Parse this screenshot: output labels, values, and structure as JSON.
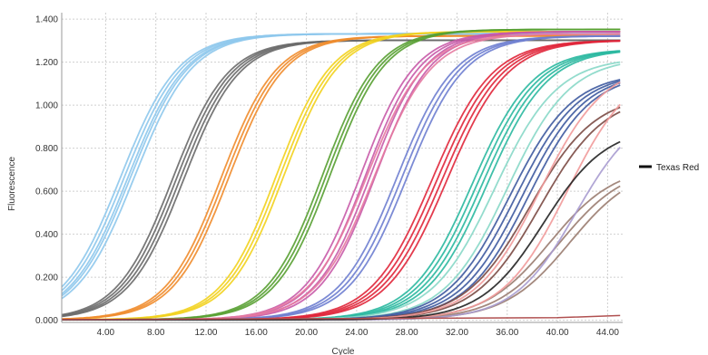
{
  "chart_data": {
    "type": "line",
    "title": "",
    "xlabel": "Cycle",
    "ylabel": "Fluorescence",
    "xlim": [
      0.5,
      45.2
    ],
    "ylim": [
      -0.01,
      1.43
    ],
    "x_ticks": [
      "4.00",
      "8.00",
      "12.00",
      "16.00",
      "20.00",
      "24.00",
      "28.00",
      "32.00",
      "36.00",
      "40.00",
      "44.00"
    ],
    "x_tick_values": [
      4,
      8,
      12,
      16,
      20,
      24,
      28,
      32,
      36,
      40,
      44
    ],
    "y_ticks": [
      "0.000",
      "0.200",
      "0.400",
      "0.600",
      "0.800",
      "1.000",
      "1.200",
      "1.400"
    ],
    "y_tick_values": [
      0,
      0.2,
      0.4,
      0.6,
      0.8,
      1.0,
      1.2,
      1.4
    ],
    "grid": true,
    "legend": {
      "position": "right",
      "entries": [
        {
          "name": "Texas Red",
          "color": "#111111"
        }
      ]
    },
    "groups": [
      {
        "color": "#8ec8ec",
        "midpoints": [
          5.2,
          5.5,
          5.8,
          6.0,
          6.3
        ],
        "plateau": 1.33,
        "slope": 2.3
      },
      {
        "color": "#6a6a6a",
        "midpoints": [
          9.3,
          9.6,
          9.9,
          10.2
        ],
        "plateau": 1.3,
        "slope": 2.2
      },
      {
        "color": "#f08c2c",
        "midpoints": [
          13.2,
          13.5,
          13.8
        ],
        "plateau": 1.32,
        "slope": 2.2
      },
      {
        "color": "#f2d21e",
        "midpoints": [
          17.6,
          17.9,
          18.2
        ],
        "plateau": 1.34,
        "slope": 2.2
      },
      {
        "color": "#58a032",
        "midpoints": [
          21.3,
          21.6,
          21.9
        ],
        "plateau": 1.35,
        "slope": 2.2
      },
      {
        "color": "#c85aa8",
        "midpoints": [
          24.3,
          24.7,
          25.1,
          25.5
        ],
        "plateau": 1.34,
        "slope": 2.2
      },
      {
        "color": "#e67aa0",
        "midpoints": [
          24.8,
          25.4
        ],
        "plateau": 1.33,
        "slope": 2.3
      },
      {
        "color": "#6e7ed0",
        "midpoints": [
          27.2,
          27.6,
          28.0
        ],
        "plateau": 1.32,
        "slope": 2.3
      },
      {
        "color": "#e0263a",
        "midpoints": [
          30.0,
          30.4,
          30.8,
          31.2
        ],
        "plateau": 1.3,
        "slope": 2.4
      },
      {
        "color": "#2ab8a0",
        "midpoints": [
          33.2,
          33.6,
          34.0,
          34.4
        ],
        "plateau": 1.26,
        "slope": 2.4
      },
      {
        "color": "#88d8c8",
        "midpoints": [
          35.0,
          36.0
        ],
        "plateau": 1.22,
        "slope": 2.5
      },
      {
        "color": "#3e5aa0",
        "midpoints": [
          36.2,
          36.7,
          37.2,
          37.7
        ],
        "plateau": 1.15,
        "slope": 2.5
      },
      {
        "color": "#7b4a44",
        "midpoints": [
          37.8,
          38.6
        ],
        "plateau": 1.05,
        "slope": 2.6
      },
      {
        "color": "#9a7c70",
        "midpoints": [
          39.4,
          40.2,
          41.0
        ],
        "plateau": 0.72,
        "slope": 2.6
      },
      {
        "color": "#f19a9a",
        "midpoints": [
          38.6,
          40.8
        ],
        "plateau": 1.2,
        "slope": 2.6
      },
      {
        "color": "#a89cd0",
        "midpoints": [
          41.5
        ],
        "plateau": 1.0,
        "slope": 2.5
      },
      {
        "color": "#222222",
        "midpoints": [
          38.9
        ],
        "plateau": 0.9,
        "slope": 2.5
      }
    ],
    "baseline_series": [
      {
        "color": "#b05050",
        "x": [
          0.5,
          40,
          45
        ],
        "y": [
          0.003,
          0.012,
          0.022
        ]
      }
    ]
  }
}
